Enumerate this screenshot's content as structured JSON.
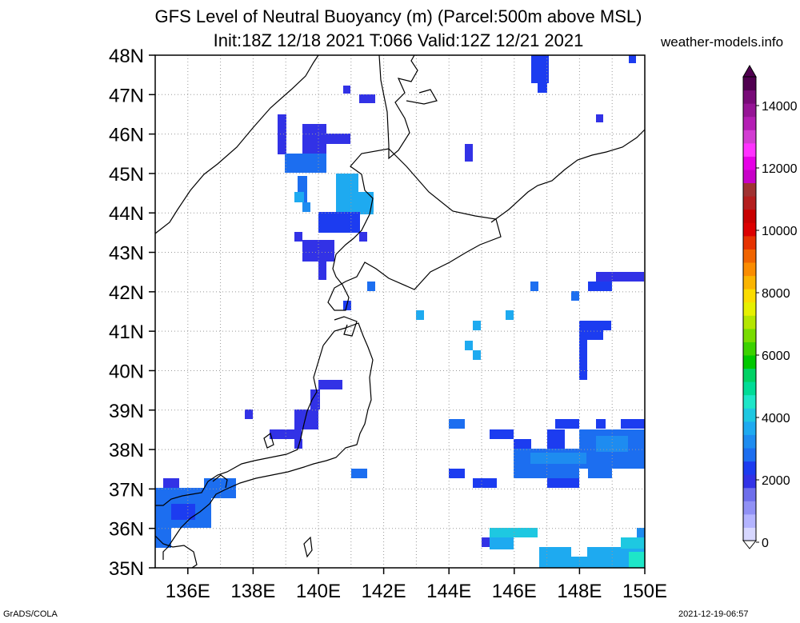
{
  "header": {
    "title_line1": "GFS Level of Neutral Buoyancy (m) (Parcel:500m above MSL)",
    "title_line2": "Init:18Z 12/18 2021 T:066 Valid:12Z 12/21 2021",
    "site": "weather-models.info"
  },
  "footer": {
    "left": "GrADS/COLA",
    "right": "2021-12-19-06:57"
  },
  "map": {
    "lat_labels": [
      "48N",
      "47N",
      "46N",
      "45N",
      "44N",
      "43N",
      "42N",
      "41N",
      "40N",
      "39N",
      "38N",
      "37N",
      "36N",
      "35N"
    ],
    "lon_labels": [
      "136E",
      "138E",
      "140E",
      "142E",
      "144E",
      "146E",
      "148E",
      "150E"
    ],
    "lat_range": [
      35,
      48
    ],
    "lon_range": [
      135,
      150
    ],
    "grid": true
  },
  "colorbar": {
    "labels": [
      "14000",
      "12000",
      "10000",
      "8000",
      "6000",
      "4000",
      "2000",
      "0"
    ],
    "colors": [
      "#d7d7ff",
      "#b4b4ff",
      "#9191f5",
      "#6e6eeb",
      "#3232e6",
      "#1c3cf0",
      "#1c6ef0",
      "#1e8cf0",
      "#1eaaf0",
      "#1ec8e1",
      "#1ee6c8",
      "#00dc96",
      "#00d264",
      "#00c800",
      "#3cd200",
      "#78dc00",
      "#b4e600",
      "#e6f000",
      "#fadc00",
      "#fab400",
      "#fa8c00",
      "#f06400",
      "#e63200",
      "#dc0000",
      "#c80000",
      "#b41e1e",
      "#a03232",
      "#c800c8",
      "#e600e6",
      "#ff32ff",
      "#d23cd2",
      "#b41eb4",
      "#961496",
      "#780a78",
      "#500050"
    ]
  }
}
